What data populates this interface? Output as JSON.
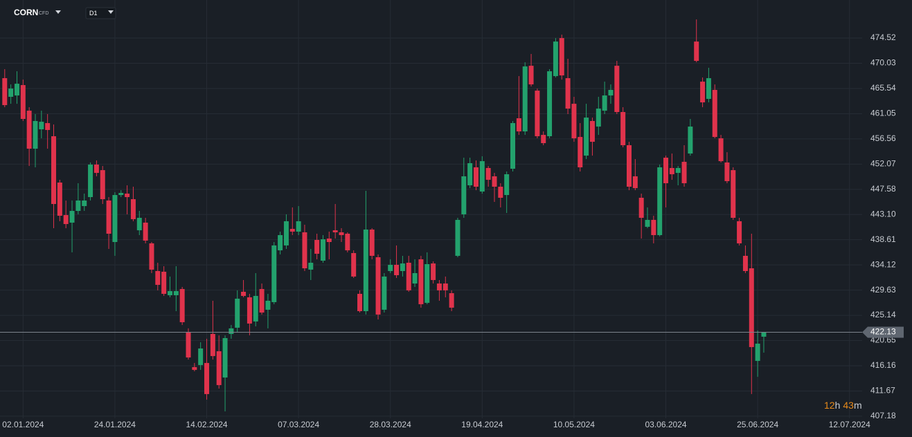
{
  "chart_data": {
    "type": "candlestick",
    "symbol": "CORN",
    "instrument_type": "CFD",
    "timeframe": "D1",
    "countdown": {
      "hours": "12",
      "hours_unit": "h",
      "minutes": "43",
      "minutes_unit": "m"
    },
    "last_price": 422.13,
    "up_color": "#23a26d",
    "down_color": "#e0334c",
    "categories": [
      null,
      null,
      null,
      "02.01.2024",
      null,
      null,
      null,
      null,
      null,
      null,
      null,
      null,
      null,
      null,
      null,
      null,
      null,
      null,
      "24.01.2024",
      null,
      null,
      null,
      null,
      null,
      null,
      null,
      null,
      null,
      null,
      null,
      null,
      null,
      null,
      "14.02.2024",
      null,
      null,
      null,
      null,
      null,
      null,
      null,
      null,
      null,
      null,
      null,
      null,
      null,
      null,
      "07.03.2024",
      null,
      null,
      null,
      null,
      null,
      null,
      null,
      null,
      null,
      null,
      null,
      null,
      null,
      null,
      "28.03.2024",
      null,
      null,
      null,
      null,
      null,
      null,
      null,
      null,
      null,
      null,
      null,
      null,
      null,
      null,
      "19.04.2024",
      null,
      null,
      null,
      null,
      null,
      null,
      null,
      null,
      null,
      null,
      null,
      null,
      null,
      null,
      "10.05.2024",
      null,
      null,
      null,
      null,
      null,
      null,
      null,
      null,
      null,
      null,
      null,
      null,
      null,
      null,
      "03.06.2024",
      null,
      null,
      null,
      null,
      null,
      null,
      null,
      null,
      null,
      null,
      null,
      null,
      null,
      null,
      "25.06.2024",
      null,
      null,
      null,
      null,
      null,
      null,
      null,
      null,
      null,
      null,
      null,
      null,
      null,
      null,
      "12.07.2024"
    ],
    "open": [
      467.38,
      464.06,
      464.3,
      466.15,
      461.59,
      454.82,
      458.27,
      459.38,
      457.04,
      448.79,
      443.0,
      441.65,
      443.74,
      444.6,
      446.2,
      451.99,
      451.0,
      445.59,
      438.2,
      446.57,
      446.82,
      445.83,
      440.29,
      441.65,
      437.96,
      433.03,
      432.91,
      428.72,
      428.72,
      429.83,
      422.2,
      415.92,
      416.29,
      416.66,
      421.83,
      418.75,
      414.07,
      421.83,
      422.94,
      429.34,
      428.35,
      424.05,
      429.83,
      426.14,
      427.49,
      436.72,
      437.59,
      440.54,
      440.05,
      439.93,
      433.28,
      438.57,
      434.88,
      438.82,
      440.29,
      439.93,
      439.68,
      436.23,
      428.97,
      425.89,
      440.42,
      435.49,
      426.14,
      433.03,
      434.14,
      433.03,
      434.51,
      430.81,
      435.12,
      427.37,
      434.38,
      430.81,
      430.81,
      429.09,
      435.74,
      443.13,
      448.3,
      451.5,
      447.19,
      451.38,
      449.9,
      448.05,
      446.57,
      451.25,
      460.24,
      457.9,
      469.59,
      465.16,
      457.28,
      457.04,
      467.75,
      474.52,
      467.38,
      462.82,
      456.91,
      453.59,
      459.75,
      458.76,
      461.59,
      464.3,
      469.59,
      461.35,
      455.44,
      449.9,
      446.08,
      440.91,
      442.14,
      439.43,
      453.22,
      451.38,
      450.51,
      452.48,
      453.96,
      473.9,
      466.76,
      463.69,
      465.29,
      456.67,
      452.36,
      451.0,
      441.9,
      435.74,
      433.52,
      417.03,
      421.34,
      null,
      null,
      null,
      null,
      null,
      null,
      null,
      null,
      null,
      null,
      null,
      null,
      null,
      null
    ],
    "high": [
      468.98,
      466.27,
      468.61,
      467.13,
      462.21,
      460.98,
      461.59,
      460.98,
      459.13,
      449.28,
      445.59,
      445.59,
      448.67,
      446.82,
      452.36,
      452.73,
      451.74,
      446.2,
      447.07,
      447.43,
      448.3,
      448.05,
      443.74,
      442.51,
      438.2,
      434.51,
      433.89,
      432.05,
      433.89,
      430.2,
      422.82,
      416.66,
      420.35,
      420.97,
      427.74,
      421.58,
      421.58,
      423.43,
      429.59,
      431.43,
      428.97,
      432.66,
      430.81,
      428.97,
      438.2,
      440.05,
      443.13,
      444.36,
      444.6,
      441.28,
      436.97,
      439.68,
      439.43,
      440.05,
      444.97,
      440.66,
      439.93,
      436.72,
      429.59,
      447.31,
      440.66,
      435.99,
      432.66,
      435.12,
      437.59,
      435.74,
      435.74,
      435.12,
      435.74,
      436.36,
      434.75,
      431.43,
      432.05,
      429.59,
      442.51,
      453.22,
      453.22,
      452.73,
      453.47,
      451.74,
      450.51,
      448.67,
      450.76,
      459.75,
      467.75,
      470.21,
      471.69,
      465.53,
      457.9,
      468.98,
      474.52,
      475.13,
      470.83,
      464.06,
      459.38,
      462.82,
      460.36,
      464.06,
      466.76,
      466.27,
      470.46,
      462.21,
      456.05,
      452.97,
      446.82,
      444.36,
      442.88,
      451.99,
      453.59,
      453.96,
      451.74,
      455.44,
      460.12,
      477.84,
      467.5,
      469.23,
      466.27,
      457.28,
      454.2,
      451.5,
      442.51,
      437.59,
      439.68,
      422.44,
      422.2,
      null,
      null,
      null,
      null,
      null,
      null,
      null,
      null,
      null,
      null,
      null,
      null,
      null,
      null
    ],
    "low": [
      462.21,
      462.82,
      462.82,
      459.75,
      451.74,
      451.5,
      456.67,
      454.82,
      440.66,
      441.9,
      440.66,
      436.36,
      443.13,
      443.74,
      445.59,
      449.9,
      444.97,
      436.97,
      435.74,
      446.2,
      443.13,
      441.9,
      439.43,
      437.96,
      432.66,
      429.59,
      428.6,
      428.35,
      425.89,
      423.43,
      417.27,
      415.18,
      415.43,
      410.13,
      417.27,
      412.1,
      408.04,
      420.97,
      422.2,
      428.35,
      421.58,
      423.18,
      425.28,
      422.82,
      427.12,
      435.99,
      436.97,
      439.43,
      439.43,
      433.03,
      431.43,
      435.12,
      434.51,
      435.12,
      438.82,
      438.2,
      436.36,
      431.8,
      425.64,
      425.28,
      435.12,
      424.41,
      425.64,
      432.66,
      431.8,
      432.05,
      429.34,
      430.2,
      426.51,
      427.12,
      430.81,
      427.74,
      428.35,
      425.89,
      435.49,
      442.51,
      447.8,
      447.43,
      446.82,
      448.05,
      445.34,
      444.36,
      443.37,
      450.76,
      457.28,
      457.28,
      465.9,
      456.67,
      455.44,
      456.67,
      467.5,
      467.13,
      460.98,
      456.05,
      450.76,
      452.97,
      453.59,
      457.28,
      460.98,
      462.82,
      460.98,
      455.07,
      447.43,
      447.43,
      438.82,
      440.66,
      437.96,
      439.19,
      444.36,
      449.28,
      448.3,
      448.05,
      453.59,
      470.21,
      462.21,
      463.07,
      456.67,
      452.36,
      448.67,
      442.14,
      437.59,
      432.66,
      411.12,
      414.2,
      418.5,
      null,
      null,
      null,
      null,
      null,
      null,
      null,
      null,
      null,
      null,
      null,
      null,
      null,
      null
    ],
    "close": [
      462.58,
      465.53,
      466.39,
      460.12,
      454.82,
      459.75,
      459.62,
      458.15,
      444.97,
      442.88,
      441.4,
      443.74,
      445.59,
      445.59,
      451.99,
      450.51,
      445.83,
      439.68,
      446.57,
      446.94,
      446.2,
      442.27,
      442.51,
      438.45,
      433.28,
      430.57,
      428.97,
      429.46,
      429.46,
      423.92,
      417.64,
      415.43,
      419.24,
      411.12,
      417.89,
      412.72,
      421.09,
      422.82,
      428.11,
      428.6,
      423.68,
      428.6,
      425.64,
      427.74,
      437.59,
      439.43,
      441.9,
      440.05,
      441.9,
      433.52,
      434.51,
      436.11,
      438.69,
      438.2,
      439.93,
      439.43,
      436.72,
      432.05,
      425.89,
      440.42,
      435.74,
      425.28,
      432.05,
      434.14,
      432.29,
      434.38,
      429.59,
      432.66,
      427.12,
      434.26,
      431.43,
      429.59,
      429.59,
      426.51,
      442.14,
      449.9,
      452.24,
      448.05,
      452.6,
      449.28,
      448.05,
      446.08,
      450.27,
      459.38,
      457.9,
      469.47,
      466.27,
      457.04,
      455.81,
      468.61,
      473.9,
      467.87,
      461.96,
      456.67,
      451.5,
      460.36,
      456.05,
      461.96,
      464.3,
      465.29,
      461.35,
      455.44,
      448.05,
      447.8,
      442.51,
      442.14,
      439.43,
      451.5,
      448.67,
      450.27,
      451.38,
      448.67,
      458.76,
      470.46,
      463.07,
      467.38,
      456.91,
      452.6,
      449.04,
      442.51,
      437.96,
      433.03,
      419.49,
      420.1,
      422.13,
      null,
      null,
      null,
      null,
      null,
      null,
      null,
      null,
      null,
      null,
      null,
      null,
      null,
      null
    ],
    "ylim": [
      406.8,
      481.3
    ],
    "yticks": [
      407.18,
      411.67,
      416.16,
      420.65,
      425.14,
      429.63,
      434.12,
      438.61,
      {
        "value": 443.1,
        "label": "443.10"
      },
      447.58,
      452.07,
      456.56,
      461.05,
      465.54,
      470.03,
      474.52
    ],
    "grid": true
  }
}
